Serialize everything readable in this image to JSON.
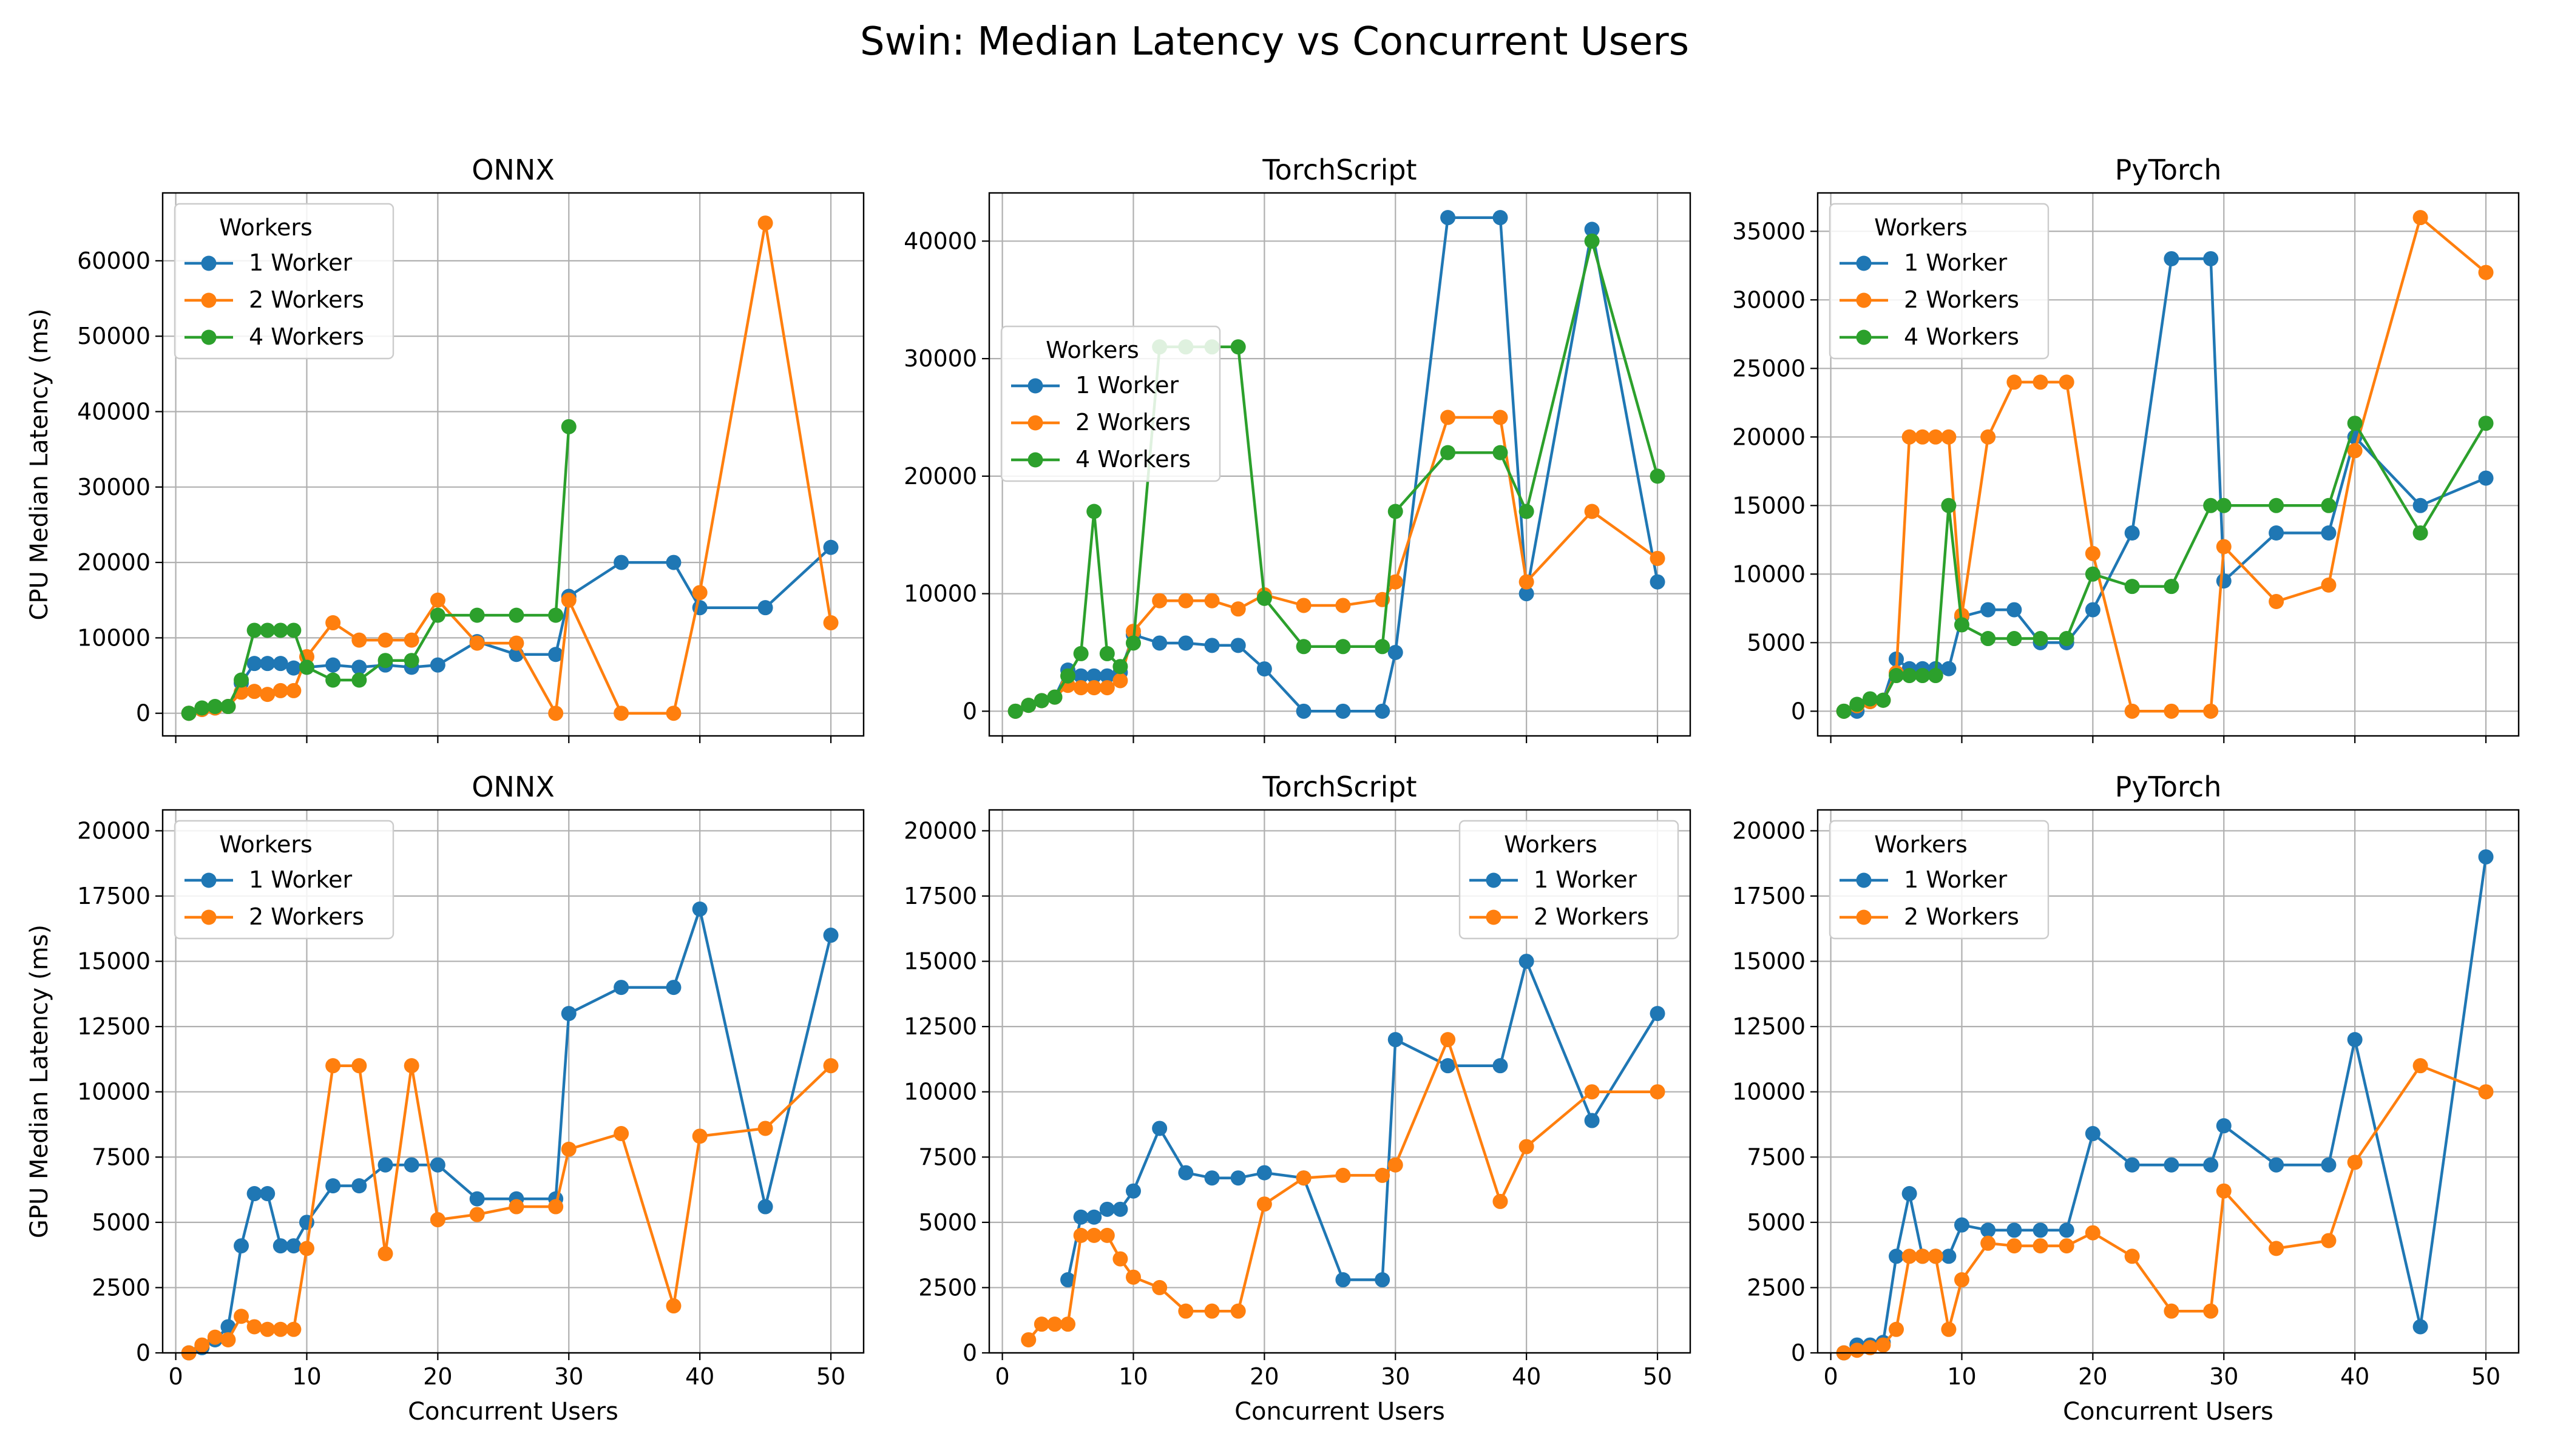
{
  "figure": {
    "title": "Swin: Median Latency vs Concurrent Users"
  },
  "colors": {
    "1 Worker": "#1f77b4",
    "2 Workers": "#ff7f0e",
    "4 Workers": "#2ca02c",
    "grid": "#b0b0b0"
  },
  "chart_data": [
    {
      "type": "line",
      "row": 0,
      "col": 0,
      "title": "ONNX",
      "ylabel": "CPU Median Latency (ms)",
      "xlabel": "",
      "xlim": [
        -1,
        52.5
      ],
      "ylim": [
        -3000,
        69000
      ],
      "yticks": [
        0,
        10000,
        20000,
        30000,
        40000,
        50000,
        60000
      ],
      "xticks": [
        0,
        10,
        20,
        30,
        40,
        50
      ],
      "show_xticklabels": false,
      "grid": true,
      "legend": {
        "title": "Workers",
        "loc": "upper-left"
      },
      "series": [
        {
          "name": "1 Worker",
          "x": [
            1,
            2,
            3,
            4,
            5,
            6,
            7,
            8,
            9,
            10,
            12,
            14,
            16,
            18,
            20,
            23,
            26,
            29,
            30,
            34,
            38,
            40,
            45,
            50
          ],
          "y": [
            0,
            500,
            700,
            900,
            4000,
            6600,
            6600,
            6600,
            6000,
            6100,
            6400,
            6100,
            6400,
            6100,
            6400,
            9500,
            7800,
            7800,
            15500,
            20000,
            20000,
            14000,
            14000,
            22000
          ]
        },
        {
          "name": "2 Workers",
          "x": [
            1,
            2,
            3,
            4,
            5,
            6,
            7,
            8,
            9,
            10,
            12,
            14,
            16,
            18,
            20,
            23,
            26,
            29,
            30,
            34,
            38,
            40,
            45,
            50
          ],
          "y": [
            0,
            500,
            700,
            900,
            2800,
            2900,
            2500,
            3000,
            3000,
            7500,
            12000,
            9700,
            9700,
            9700,
            15000,
            9300,
            9300,
            0,
            15000,
            0,
            0,
            16000,
            65000,
            12000
          ]
        },
        {
          "name": "4 Workers",
          "x": [
            1,
            2,
            3,
            4,
            5,
            6,
            7,
            8,
            9,
            10,
            12,
            14,
            16,
            18,
            20,
            23,
            26,
            29,
            30
          ],
          "y": [
            0,
            700,
            900,
            900,
            4400,
            11000,
            11000,
            11000,
            11000,
            6100,
            4400,
            4400,
            7000,
            7000,
            13000,
            13000,
            13000,
            13000,
            38000
          ]
        }
      ]
    },
    {
      "type": "line",
      "row": 0,
      "col": 1,
      "title": "TorchScript",
      "ylabel": "",
      "xlabel": "",
      "xlim": [
        -1,
        52.5
      ],
      "ylim": [
        -2100,
        44100
      ],
      "yticks": [
        0,
        10000,
        20000,
        30000,
        40000
      ],
      "xticks": [
        0,
        10,
        20,
        30,
        40,
        50
      ],
      "show_xticklabels": false,
      "grid": true,
      "legend": {
        "title": "Workers",
        "loc": "center-left"
      },
      "series": [
        {
          "name": "1 Worker",
          "x": [
            1,
            2,
            3,
            4,
            5,
            6,
            7,
            8,
            9,
            10,
            12,
            14,
            16,
            18,
            20,
            23,
            26,
            29,
            30,
            34,
            38,
            40,
            45,
            50
          ],
          "y": [
            0,
            500,
            900,
            1200,
            3500,
            3000,
            3000,
            3000,
            3300,
            6500,
            5800,
            5800,
            5600,
            5600,
            3600,
            0,
            0,
            0,
            5000,
            42000,
            42000,
            10000,
            41000,
            11000
          ]
        },
        {
          "name": "2 Workers",
          "x": [
            1,
            2,
            3,
            4,
            5,
            6,
            7,
            8,
            9,
            10,
            12,
            14,
            16,
            18,
            20,
            23,
            26,
            29,
            30,
            34,
            38,
            40,
            45,
            50
          ],
          "y": [
            0,
            500,
            900,
            1200,
            2200,
            2000,
            2000,
            2000,
            2600,
            6800,
            9400,
            9400,
            9400,
            8700,
            9900,
            9000,
            9000,
            9500,
            11000,
            25000,
            25000,
            11000,
            17000,
            13000
          ]
        },
        {
          "name": "4 Workers",
          "x": [
            1,
            2,
            3,
            4,
            5,
            6,
            7,
            8,
            9,
            10,
            12,
            14,
            16,
            18,
            20,
            23,
            26,
            29,
            30,
            34,
            38,
            40,
            45,
            50
          ],
          "y": [
            0,
            500,
            900,
            1200,
            3000,
            4900,
            17000,
            4900,
            3800,
            5800,
            31000,
            31000,
            31000,
            31000,
            9600,
            5500,
            5500,
            5500,
            17000,
            22000,
            22000,
            17000,
            40000,
            20000
          ]
        }
      ]
    },
    {
      "type": "line",
      "row": 0,
      "col": 2,
      "title": "PyTorch",
      "ylabel": "",
      "xlabel": "",
      "xlim": [
        -1,
        52.5
      ],
      "ylim": [
        -1800,
        37800
      ],
      "yticks": [
        0,
        5000,
        10000,
        15000,
        20000,
        25000,
        30000,
        35000
      ],
      "xticks": [
        0,
        10,
        20,
        30,
        40,
        50
      ],
      "show_xticklabels": false,
      "grid": true,
      "legend": {
        "title": "Workers",
        "loc": "upper-left"
      },
      "series": [
        {
          "name": "1 Worker",
          "x": [
            1,
            2,
            3,
            4,
            5,
            6,
            7,
            8,
            9,
            10,
            12,
            14,
            16,
            18,
            20,
            23,
            26,
            29,
            30,
            34,
            38,
            40,
            45,
            50
          ],
          "y": [
            0,
            0,
            700,
            800,
            3800,
            3100,
            3100,
            3100,
            3100,
            6900,
            7400,
            7400,
            5000,
            5000,
            7400,
            13000,
            33000,
            33000,
            9500,
            13000,
            13000,
            20000,
            15000,
            17000
          ]
        },
        {
          "name": "2 Workers",
          "x": [
            1,
            2,
            3,
            4,
            5,
            6,
            7,
            8,
            9,
            10,
            12,
            14,
            16,
            18,
            20,
            23,
            26,
            29,
            30,
            34,
            38,
            40,
            45,
            50
          ],
          "y": [
            0,
            400,
            700,
            800,
            2800,
            20000,
            20000,
            20000,
            20000,
            7000,
            20000,
            24000,
            24000,
            24000,
            11500,
            0,
            0,
            0,
            12000,
            8000,
            9200,
            19000,
            36000,
            32000
          ]
        },
        {
          "name": "4 Workers",
          "x": [
            1,
            2,
            3,
            4,
            5,
            6,
            7,
            8,
            9,
            10,
            12,
            14,
            16,
            18,
            20,
            23,
            26,
            29,
            30,
            34,
            38,
            40,
            45,
            50
          ],
          "y": [
            0,
            500,
            900,
            800,
            2600,
            2600,
            2600,
            2600,
            15000,
            6300,
            5300,
            5300,
            5300,
            5300,
            10000,
            9100,
            9100,
            15000,
            15000,
            15000,
            15000,
            21000,
            13000,
            21000
          ]
        }
      ]
    },
    {
      "type": "line",
      "row": 1,
      "col": 0,
      "title": "ONNX",
      "ylabel": "GPU Median Latency (ms)",
      "xlabel": "Concurrent Users",
      "xlim": [
        -1,
        52.5
      ],
      "ylim": [
        0,
        20800
      ],
      "yticks": [
        0,
        2500,
        5000,
        7500,
        10000,
        12500,
        15000,
        17500,
        20000
      ],
      "xticks": [
        0,
        10,
        20,
        30,
        40,
        50
      ],
      "show_xticklabels": true,
      "grid": true,
      "legend": {
        "title": "Workers",
        "loc": "upper-left"
      },
      "series": [
        {
          "name": "1 Worker",
          "x": [
            1,
            2,
            3,
            4,
            5,
            6,
            7,
            8,
            9,
            10,
            12,
            14,
            16,
            18,
            20,
            23,
            26,
            29,
            30,
            34,
            38,
            40,
            45,
            50
          ],
          "y": [
            0,
            200,
            500,
            1000,
            4100,
            6100,
            6100,
            4100,
            4100,
            5000,
            6400,
            6400,
            7200,
            7200,
            7200,
            5900,
            5900,
            5900,
            13000,
            14000,
            14000,
            17000,
            5600,
            16000
          ]
        },
        {
          "name": "2 Workers",
          "x": [
            1,
            2,
            3,
            4,
            5,
            6,
            7,
            8,
            9,
            10,
            12,
            14,
            16,
            18,
            20,
            23,
            26,
            29,
            30,
            34,
            38,
            40,
            45,
            50
          ],
          "y": [
            0,
            300,
            600,
            500,
            1400,
            1000,
            900,
            900,
            900,
            4000,
            11000,
            11000,
            3800,
            11000,
            5100,
            5300,
            5600,
            5600,
            7800,
            8400,
            1800,
            8300,
            8600,
            11000
          ]
        }
      ]
    },
    {
      "type": "line",
      "row": 1,
      "col": 1,
      "title": "TorchScript",
      "ylabel": "",
      "xlabel": "Concurrent Users",
      "xlim": [
        -1,
        52.5
      ],
      "ylim": [
        0,
        20800
      ],
      "yticks": [
        0,
        2500,
        5000,
        7500,
        10000,
        12500,
        15000,
        17500,
        20000
      ],
      "xticks": [
        0,
        10,
        20,
        30,
        40,
        50
      ],
      "show_xticklabels": true,
      "grid": true,
      "legend": {
        "title": "Workers",
        "loc": "upper-right"
      },
      "series": [
        {
          "name": "1 Worker",
          "x": [
            5,
            6,
            7,
            8,
            9,
            10,
            12,
            14,
            16,
            18,
            20,
            23,
            26,
            29,
            30,
            34,
            38,
            40,
            45,
            50
          ],
          "y": [
            2800,
            5200,
            5200,
            5500,
            5500,
            6200,
            8600,
            6900,
            6700,
            6700,
            6900,
            6700,
            2800,
            2800,
            12000,
            11000,
            11000,
            15000,
            8900,
            13000
          ]
        },
        {
          "name": "2 Workers",
          "x": [
            2,
            3,
            4,
            5,
            6,
            7,
            8,
            9,
            10,
            12,
            14,
            16,
            18,
            20,
            23,
            26,
            29,
            30,
            34,
            38,
            40,
            45,
            50
          ],
          "y": [
            500,
            1100,
            1100,
            1100,
            4500,
            4500,
            4500,
            3600,
            2900,
            2500,
            1600,
            1600,
            1600,
            5700,
            6700,
            6800,
            6800,
            7200,
            12000,
            5800,
            7900,
            10000,
            10000
          ]
        }
      ]
    },
    {
      "type": "line",
      "row": 1,
      "col": 2,
      "title": "PyTorch",
      "ylabel": "",
      "xlabel": "Concurrent Users",
      "xlim": [
        -1,
        52.5
      ],
      "ylim": [
        0,
        20800
      ],
      "yticks": [
        0,
        2500,
        5000,
        7500,
        10000,
        12500,
        15000,
        17500,
        20000
      ],
      "xticks": [
        0,
        10,
        20,
        30,
        40,
        50
      ],
      "show_xticklabels": true,
      "grid": true,
      "legend": {
        "title": "Workers",
        "loc": "upper-left"
      },
      "series": [
        {
          "name": "1 Worker",
          "x": [
            1,
            2,
            3,
            4,
            5,
            6,
            7,
            8,
            9,
            10,
            12,
            14,
            16,
            18,
            20,
            23,
            26,
            29,
            30,
            34,
            38,
            40,
            45,
            50
          ],
          "y": [
            0,
            300,
            300,
            400,
            3700,
            6100,
            3700,
            3700,
            3700,
            4900,
            4700,
            4700,
            4700,
            4700,
            8400,
            7200,
            7200,
            7200,
            8700,
            7200,
            7200,
            12000,
            1000,
            19000
          ]
        },
        {
          "name": "2 Workers",
          "x": [
            1,
            2,
            3,
            4,
            5,
            6,
            7,
            8,
            9,
            10,
            12,
            14,
            16,
            18,
            20,
            23,
            26,
            29,
            30,
            34,
            38,
            40,
            45,
            50
          ],
          "y": [
            0,
            100,
            200,
            300,
            900,
            3700,
            3700,
            3700,
            900,
            2800,
            4200,
            4100,
            4100,
            4100,
            4600,
            3700,
            1600,
            1600,
            6200,
            4000,
            4300,
            7300,
            11000,
            10000
          ]
        }
      ]
    }
  ]
}
